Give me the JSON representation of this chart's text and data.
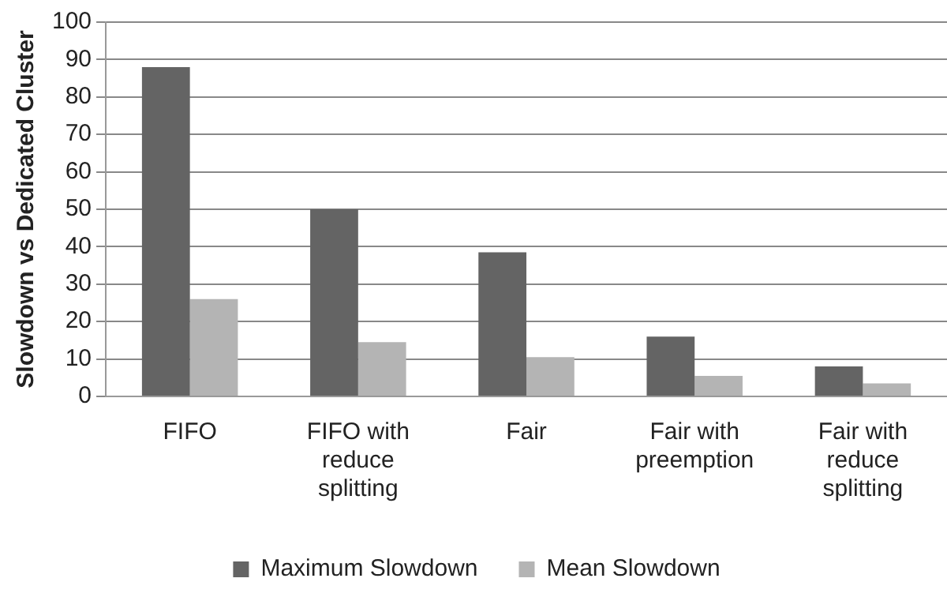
{
  "chart_data": {
    "type": "bar",
    "ylabel": "Slowdown vs Dedicated Cluster",
    "categories": [
      "FIFO",
      "FIFO with reduce splitting",
      "Fair",
      "Fair with preemption",
      "Fair with reduce splitting"
    ],
    "series": [
      {
        "name": "Maximum Slowdown",
        "color": "#646464",
        "values": [
          88,
          50,
          38.5,
          16,
          8
        ]
      },
      {
        "name": "Mean Slowdown",
        "color": "#b4b4b4",
        "values": [
          26,
          14.5,
          10.5,
          5.5,
          3.5
        ]
      }
    ],
    "ylim": [
      0,
      100
    ],
    "yticks": [
      0,
      10,
      20,
      30,
      40,
      50,
      60,
      70,
      80,
      90,
      100
    ],
    "grid": "y",
    "legend": "bottom"
  }
}
